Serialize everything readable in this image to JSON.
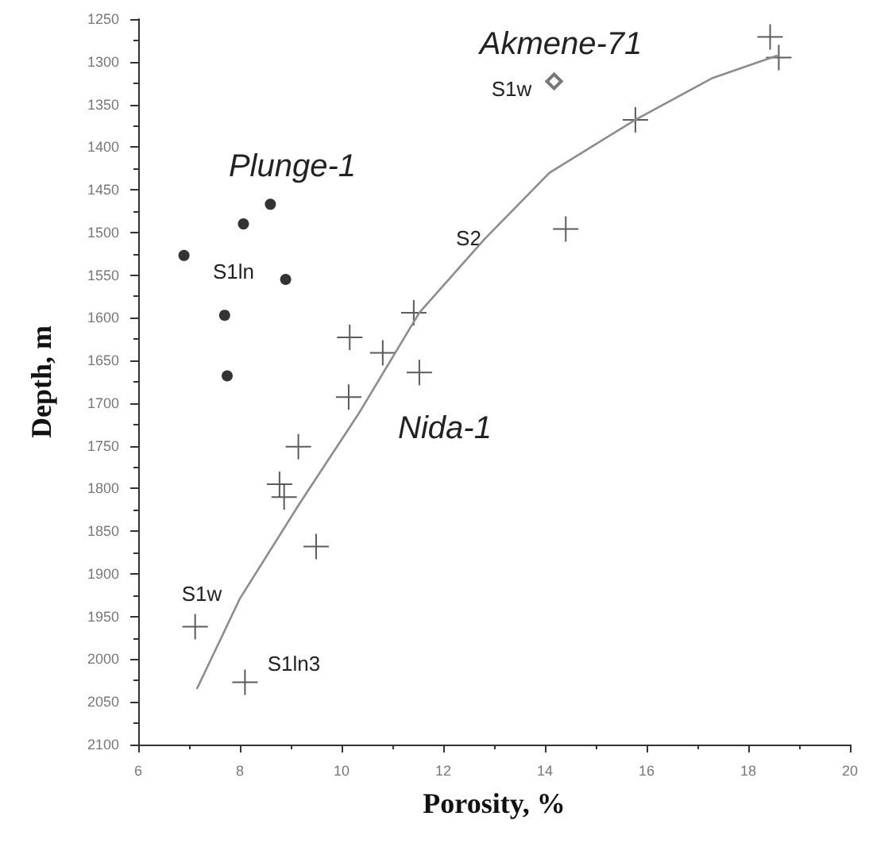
{
  "chart_data": {
    "type": "scatter",
    "xlabel": "Porosity, %",
    "ylabel": "Depth, m",
    "xlim": [
      6,
      20
    ],
    "xticks": [
      6,
      8,
      10,
      12,
      14,
      16,
      18,
      20
    ],
    "ylim": [
      2100,
      1250
    ],
    "yticks": [
      1250,
      1300,
      1350,
      1400,
      1450,
      1500,
      1550,
      1600,
      1650,
      1700,
      1750,
      1800,
      1850,
      1900,
      1950,
      2000,
      2050,
      2100
    ],
    "grid": false,
    "series": [
      {
        "type": "scatter",
        "marker": "circle",
        "color": "#000000",
        "x": [
          6.9,
          8.07,
          8.6,
          8.9,
          7.7,
          7.75
        ],
        "values": [
          1527,
          1490,
          1467,
          1555,
          1597,
          1668
        ]
      },
      {
        "type": "scatter",
        "marker": "diamond",
        "color": "#555555",
        "x": [
          14.18
        ],
        "values": [
          1323
        ]
      },
      {
        "type": "scatter",
        "marker": "cross",
        "color": "#333333",
        "x": [
          18.43,
          18.6,
          15.78,
          14.41,
          11.42,
          10.16,
          10.81,
          11.53,
          10.14,
          9.15,
          8.78,
          8.87,
          9.5,
          7.12,
          8.1
        ],
        "values": [
          1271,
          1295,
          1368,
          1496,
          1594,
          1623,
          1641,
          1664,
          1693,
          1751,
          1795,
          1810,
          1868,
          1962,
          2027
        ]
      },
      {
        "type": "line",
        "marker": "none",
        "color": "#8c8c8c",
        "x": [
          7.16,
          8.0,
          9.17,
          10.35,
          11.53,
          12.81,
          14.09,
          15.78,
          17.3,
          18.56
        ],
        "values": [
          2034,
          1929,
          1818,
          1711,
          1594,
          1508,
          1430,
          1368,
          1319,
          1293
        ]
      }
    ],
    "annotations": [
      "Plunge-1",
      "Akmene-71",
      "Nida-1",
      "S1ln",
      "S2",
      "S1w",
      "S1w",
      "S1ln3"
    ]
  }
}
